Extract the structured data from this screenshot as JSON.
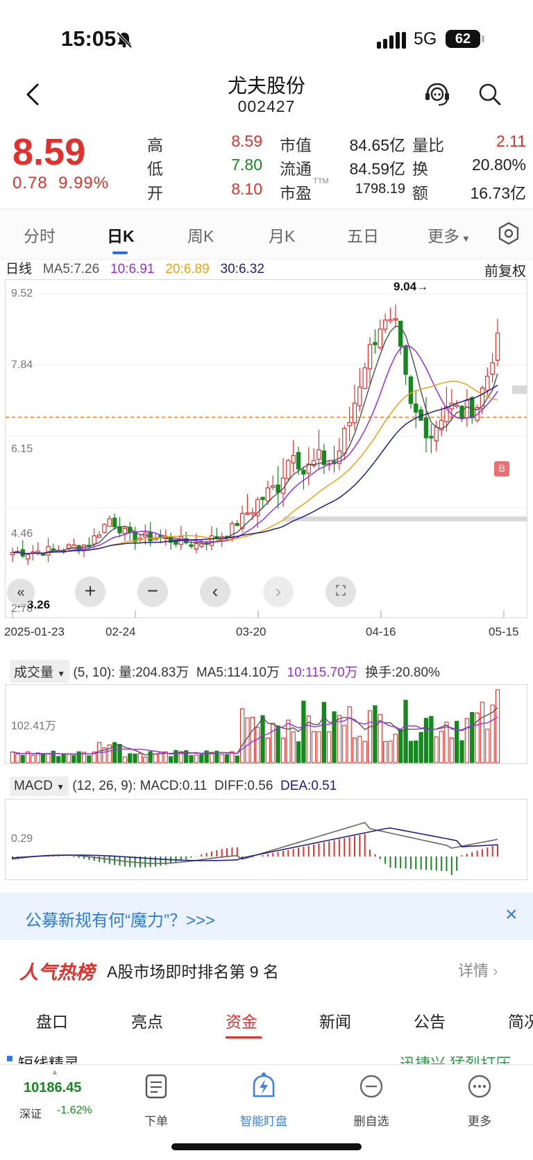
{
  "status_bar": {
    "time": "15:05",
    "network": "5G",
    "battery": "62"
  },
  "header": {
    "name": "尤夫股份",
    "code": "002427"
  },
  "quote": {
    "price": "8.59",
    "change": "0.78",
    "change_pct": "9.99%",
    "fields": [
      {
        "label": "高",
        "value": "8.59",
        "color": "#e0312c"
      },
      {
        "label": "低",
        "value": "7.80",
        "color": "#14891e"
      },
      {
        "label": "开",
        "value": "8.10",
        "color": "#e0312c"
      },
      {
        "label": "市值",
        "value": "84.65亿",
        "color": "#222222"
      },
      {
        "label": "流通",
        "value": "84.59亿",
        "color": "#222222"
      },
      {
        "label": "市盈",
        "label_sup": "TTM",
        "value": "1798.19",
        "color": "#222222"
      },
      {
        "label": "量比",
        "value": "2.11",
        "color": "#e0312c"
      },
      {
        "label": "换",
        "value": "20.80%",
        "color": "#222222"
      },
      {
        "label": "额",
        "value": "16.73亿",
        "color": "#222222"
      }
    ]
  },
  "period_tabs": [
    "分时",
    "日K",
    "周K",
    "月K",
    "五日",
    "更多"
  ],
  "active_tab": "日K",
  "ma": {
    "title": "日线",
    "ma5": "MA5:7.26",
    "ma10": "10:6.91",
    "ma20": "20:6.89",
    "ma30": "30:6.32",
    "adjust": "前复权"
  },
  "kline": {
    "y_ticks": [
      "9.52",
      "7.84",
      "6.15",
      "4.46",
      "2.78"
    ],
    "high_label": "9.04→",
    "low_label": "←3.26",
    "dates": [
      "2025-01-23",
      "02-24",
      "03-20",
      "04-16",
      "05-15"
    ],
    "buy_marker": "B"
  },
  "volume": {
    "selector": "成交量",
    "params": "(5, 10):",
    "vol": "量:204.83万",
    "ma5": "MA5:114.10万",
    "ma10": "10:115.70万",
    "turnover": "换手:20.80%",
    "y_tick": "102.41万"
  },
  "macd": {
    "selector": "MACD",
    "params": "(12, 26, 9):",
    "macd": "MACD:0.11",
    "diff": "DIFF:0.56",
    "dea": "DEA:0.51",
    "y_tick": "0.29"
  },
  "banner": {
    "text": "公募新规有何“魔力”？>>>",
    "close": "×"
  },
  "hot": {
    "logo": "人气热榜",
    "text": "A股市场即时排名第 9 名",
    "detail": "详情"
  },
  "bottom_tabs": [
    "盘口",
    "亮点",
    "资金",
    "新闻",
    "公告",
    "简况"
  ],
  "active_bottom_tab": "资金",
  "cutoff": {
    "left": "短线精灵",
    "right": "迅捷兴 猛烈打压"
  },
  "bottom_nav": {
    "index_value": "10186.45",
    "index_name": "深证",
    "index_change": "-1.62%",
    "items": [
      "下单",
      "智能盯盘",
      "删自选",
      "更多"
    ]
  },
  "colors": {
    "up": "#e0312c",
    "down": "#14891e",
    "ma5": "#555555",
    "ma10": "#9b2be8",
    "ma20": "#f2a20c",
    "ma30": "#1c1c8c",
    "accent": "#2c6ee8"
  }
}
